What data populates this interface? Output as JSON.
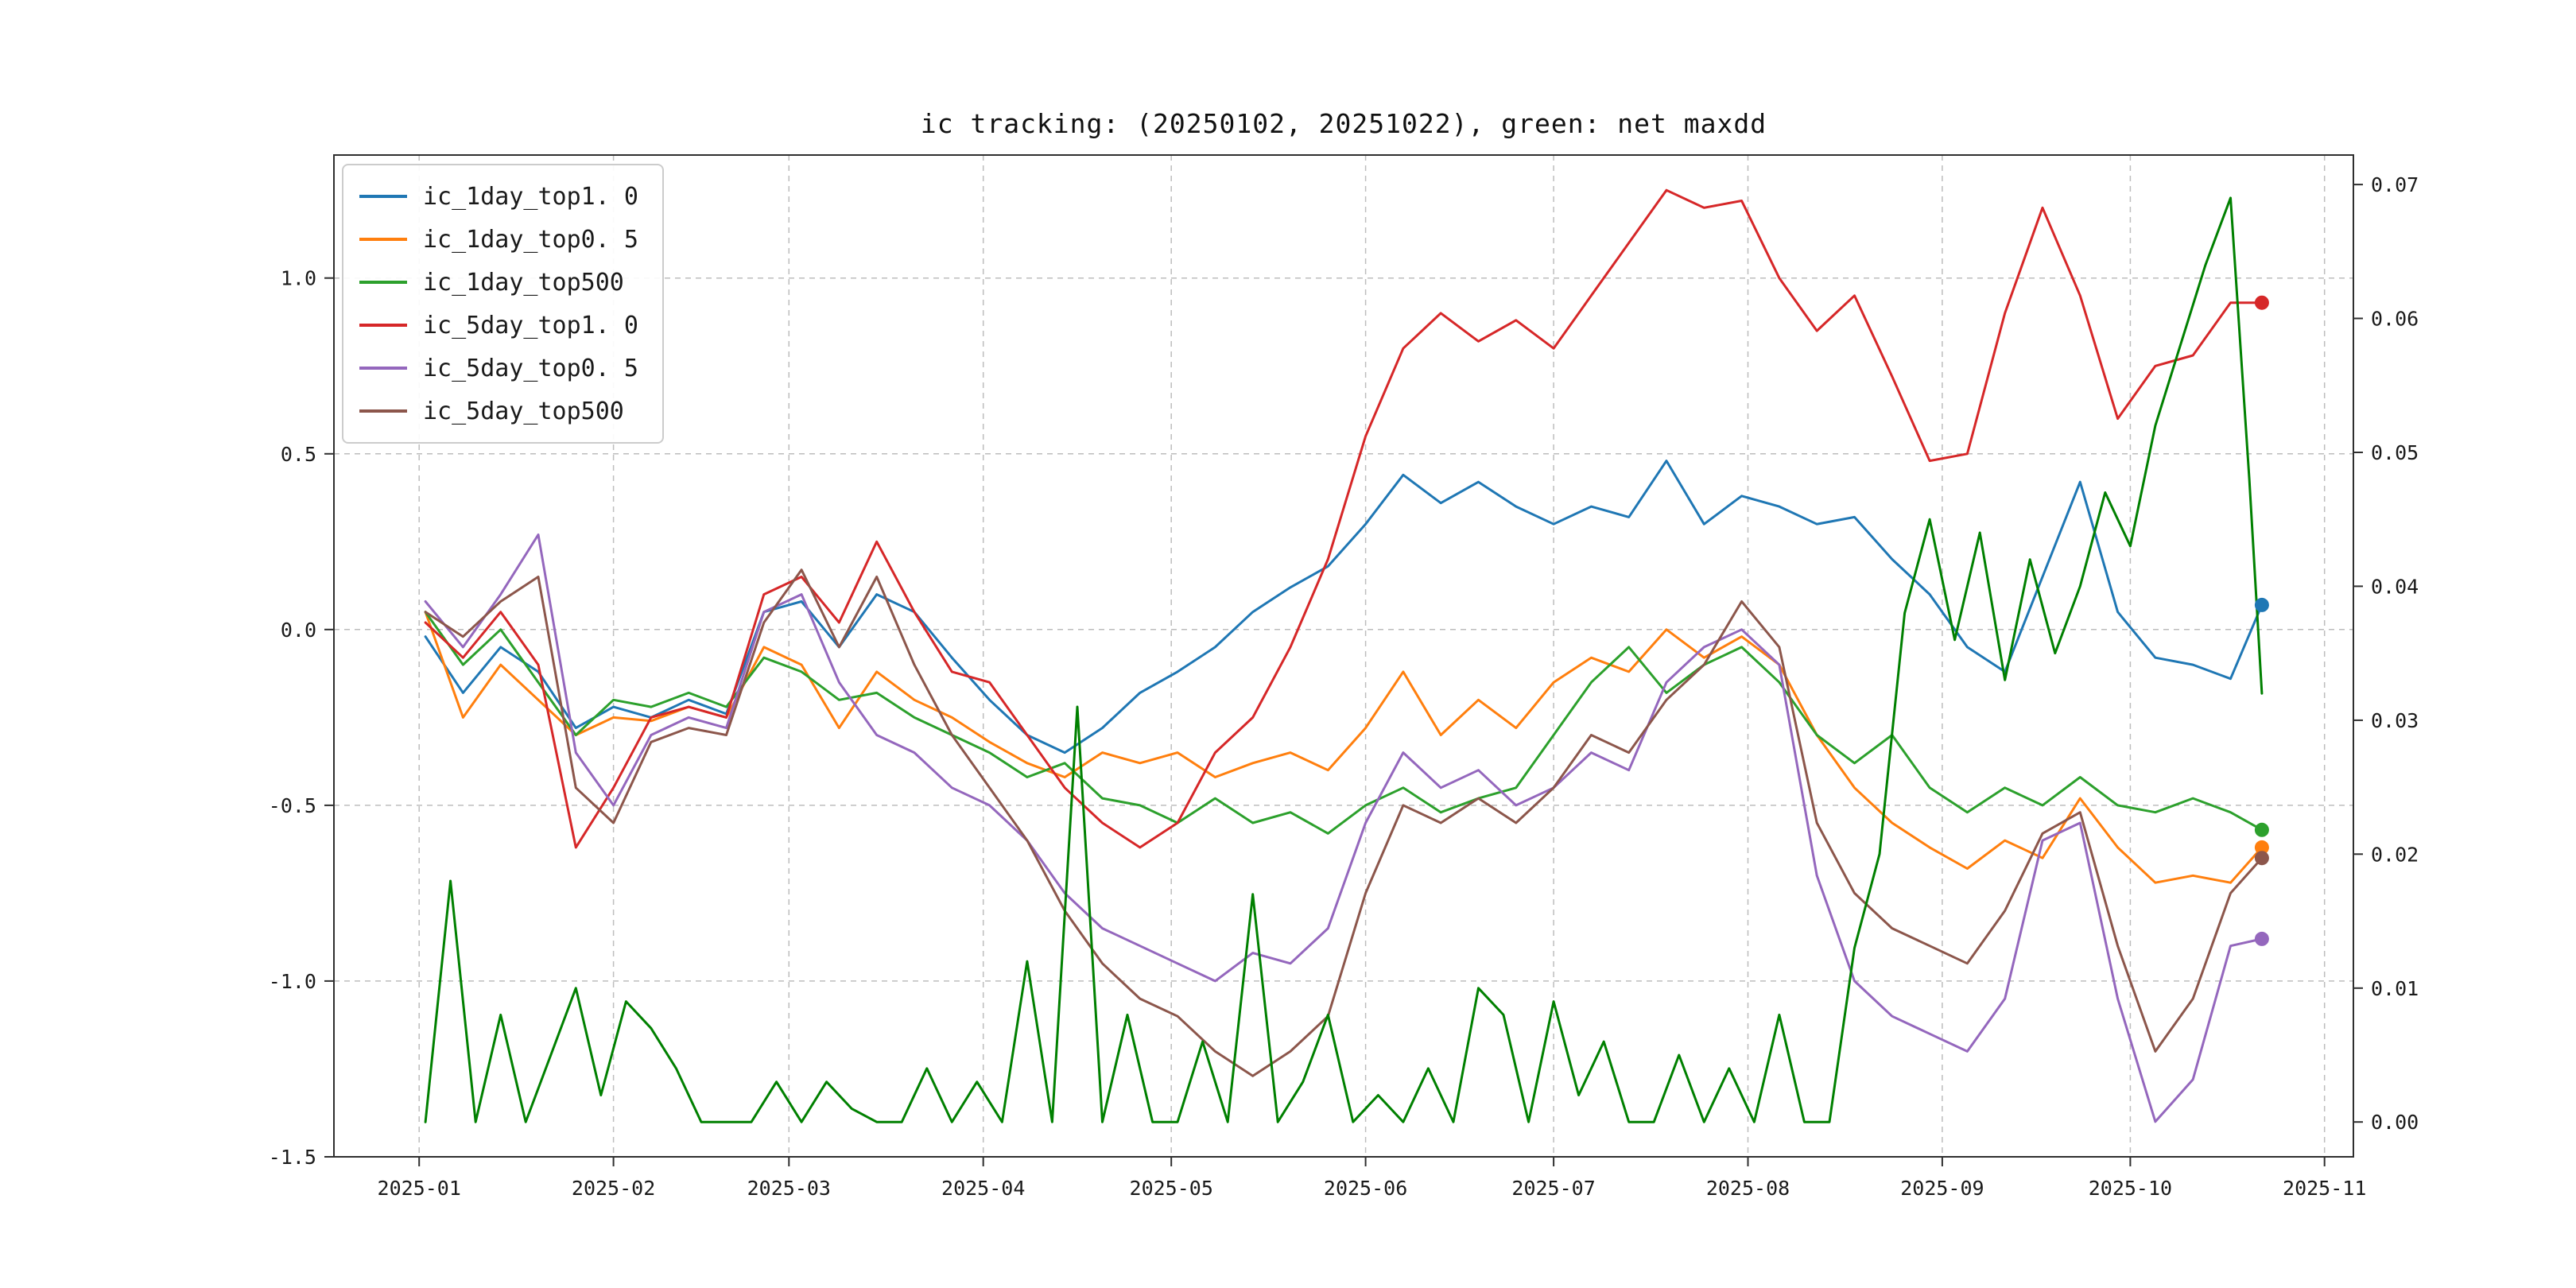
{
  "title": "ic tracking: (20250102, 20251022), green: net maxdd",
  "legend": {
    "items": [
      {
        "label": "ic_1day_top1. 0",
        "color": "#1f77b4"
      },
      {
        "label": "ic_1day_top0. 5",
        "color": "#ff7f0e"
      },
      {
        "label": "ic_1day_top500",
        "color": "#2ca02c"
      },
      {
        "label": "ic_5day_top1. 0",
        "color": "#d62728"
      },
      {
        "label": "ic_5day_top0. 5",
        "color": "#9467bd"
      },
      {
        "label": "ic_5day_top500",
        "color": "#8c564b"
      }
    ]
  },
  "axes": {
    "x_tick_labels": [
      "2025-01",
      "2025-02",
      "2025-03",
      "2025-04",
      "2025-05",
      "2025-06",
      "2025-07",
      "2025-08",
      "2025-09",
      "2025-10",
      "2025-11"
    ],
    "x_tick_days": [
      1,
      32,
      60,
      91,
      121,
      152,
      182,
      213,
      244,
      274,
      305
    ],
    "left_tick_labels": [
      "1.0",
      "0.5",
      "0.0",
      "-0.5",
      "-1.0",
      "-1.5"
    ],
    "left_tick_values": [
      1.0,
      0.5,
      0.0,
      -0.5,
      -1.0,
      -1.5
    ],
    "right_tick_labels": [
      "0.07",
      "0.06",
      "0.05",
      "0.04",
      "0.03",
      "0.02",
      "0.01",
      "0.00"
    ],
    "right_tick_values": [
      0.07,
      0.06,
      0.05,
      0.04,
      0.03,
      0.02,
      0.01,
      0.0
    ]
  },
  "chart_data": {
    "type": "line",
    "title": "ic tracking: (20250102, 20251022), green: net maxdd",
    "x_unit": "day-of-year 2025, data span 2025-01-02 to 2025-10-22",
    "xlim_days": [
      -12.6,
      309.6
    ],
    "left_ylim": [
      -1.5,
      1.35
    ],
    "right_ylim": [
      -0.0026,
      0.0722
    ],
    "grid": true,
    "legend_position": "upper left",
    "shared_x_days": [
      2,
      8,
      14,
      20,
      26,
      32,
      38,
      44,
      50,
      56,
      62,
      68,
      74,
      80,
      86,
      92,
      98,
      104,
      110,
      116,
      122,
      128,
      134,
      140,
      146,
      152,
      158,
      164,
      170,
      176,
      182,
      188,
      194,
      200,
      206,
      212,
      218,
      224,
      230,
      236,
      242,
      248,
      254,
      260,
      266,
      272,
      278,
      284,
      290,
      295
    ],
    "series": [
      {
        "name": "ic_1day_top1.0",
        "color": "#1f77b4",
        "axis": "left",
        "values": [
          -0.02,
          -0.18,
          -0.05,
          -0.12,
          -0.28,
          -0.22,
          -0.25,
          -0.2,
          -0.24,
          0.05,
          0.08,
          -0.05,
          0.1,
          0.05,
          -0.08,
          -0.2,
          -0.3,
          -0.35,
          -0.28,
          -0.18,
          -0.12,
          -0.05,
          0.05,
          0.12,
          0.18,
          0.3,
          0.44,
          0.36,
          0.42,
          0.35,
          0.3,
          0.35,
          0.32,
          0.48,
          0.3,
          0.38,
          0.35,
          0.3,
          0.32,
          0.2,
          0.1,
          -0.05,
          -0.12,
          0.15,
          0.42,
          0.05,
          -0.08,
          -0.1,
          -0.14,
          0.07
        ]
      },
      {
        "name": "ic_1day_top0.5",
        "color": "#ff7f0e",
        "axis": "left",
        "values": [
          0.05,
          -0.25,
          -0.1,
          -0.2,
          -0.3,
          -0.25,
          -0.26,
          -0.22,
          -0.25,
          -0.05,
          -0.1,
          -0.28,
          -0.12,
          -0.2,
          -0.25,
          -0.32,
          -0.38,
          -0.42,
          -0.35,
          -0.38,
          -0.35,
          -0.42,
          -0.38,
          -0.35,
          -0.4,
          -0.28,
          -0.12,
          -0.3,
          -0.2,
          -0.28,
          -0.15,
          -0.08,
          -0.12,
          0.0,
          -0.08,
          -0.02,
          -0.1,
          -0.3,
          -0.45,
          -0.55,
          -0.62,
          -0.68,
          -0.6,
          -0.65,
          -0.48,
          -0.62,
          -0.72,
          -0.7,
          -0.72,
          -0.62
        ]
      },
      {
        "name": "ic_1day_top500",
        "color": "#2ca02c",
        "axis": "left",
        "values": [
          0.05,
          -0.1,
          0.0,
          -0.15,
          -0.3,
          -0.2,
          -0.22,
          -0.18,
          -0.22,
          -0.08,
          -0.12,
          -0.2,
          -0.18,
          -0.25,
          -0.3,
          -0.35,
          -0.42,
          -0.38,
          -0.48,
          -0.5,
          -0.55,
          -0.48,
          -0.55,
          -0.52,
          -0.58,
          -0.5,
          -0.45,
          -0.52,
          -0.48,
          -0.45,
          -0.3,
          -0.15,
          -0.05,
          -0.18,
          -0.1,
          -0.05,
          -0.15,
          -0.3,
          -0.38,
          -0.3,
          -0.45,
          -0.52,
          -0.45,
          -0.5,
          -0.42,
          -0.5,
          -0.52,
          -0.48,
          -0.52,
          -0.57
        ]
      },
      {
        "name": "ic_5day_top1.0",
        "color": "#d62728",
        "axis": "left",
        "values": [
          0.02,
          -0.08,
          0.05,
          -0.1,
          -0.62,
          -0.45,
          -0.25,
          -0.22,
          -0.25,
          0.1,
          0.15,
          0.02,
          0.25,
          0.05,
          -0.12,
          -0.15,
          -0.3,
          -0.45,
          -0.55,
          -0.62,
          -0.55,
          -0.35,
          -0.25,
          -0.05,
          0.2,
          0.55,
          0.8,
          0.9,
          0.82,
          0.88,
          0.8,
          0.95,
          1.1,
          1.25,
          1.2,
          1.22,
          1.0,
          0.85,
          0.95,
          0.72,
          0.48,
          0.5,
          0.9,
          1.2,
          0.95,
          0.6,
          0.75,
          0.78,
          0.93,
          0.93
        ]
      },
      {
        "name": "ic_5day_top0.5",
        "color": "#9467bd",
        "axis": "left",
        "values": [
          0.08,
          -0.05,
          0.1,
          0.27,
          -0.35,
          -0.5,
          -0.3,
          -0.25,
          -0.28,
          0.05,
          0.1,
          -0.15,
          -0.3,
          -0.35,
          -0.45,
          -0.5,
          -0.6,
          -0.75,
          -0.85,
          -0.9,
          -0.95,
          -1.0,
          -0.92,
          -0.95,
          -0.85,
          -0.55,
          -0.35,
          -0.45,
          -0.4,
          -0.5,
          -0.45,
          -0.35,
          -0.4,
          -0.15,
          -0.05,
          0.0,
          -0.1,
          -0.7,
          -1.0,
          -1.1,
          -1.15,
          -1.2,
          -1.05,
          -0.6,
          -0.55,
          -1.05,
          -1.4,
          -1.28,
          -0.9,
          -0.88
        ]
      },
      {
        "name": "ic_5day_top500",
        "color": "#8c564b",
        "axis": "left",
        "values": [
          0.05,
          -0.02,
          0.08,
          0.15,
          -0.45,
          -0.55,
          -0.32,
          -0.28,
          -0.3,
          0.02,
          0.17,
          -0.05,
          0.15,
          -0.1,
          -0.3,
          -0.45,
          -0.6,
          -0.8,
          -0.95,
          -1.05,
          -1.1,
          -1.2,
          -1.27,
          -1.2,
          -1.1,
          -0.75,
          -0.5,
          -0.55,
          -0.48,
          -0.55,
          -0.45,
          -0.3,
          -0.35,
          -0.2,
          -0.1,
          0.08,
          -0.05,
          -0.55,
          -0.75,
          -0.85,
          -0.9,
          -0.95,
          -0.8,
          -0.58,
          -0.52,
          -0.9,
          -1.2,
          -1.05,
          -0.75,
          -0.65
        ]
      },
      {
        "name": "net_maxdd",
        "color": "#008000",
        "axis": "right",
        "x_days": [
          2,
          6,
          10,
          14,
          18,
          22,
          26,
          30,
          34,
          38,
          42,
          46,
          50,
          54,
          58,
          62,
          66,
          70,
          74,
          78,
          82,
          86,
          90,
          94,
          98,
          102,
          106,
          110,
          114,
          118,
          122,
          126,
          130,
          134,
          138,
          142,
          146,
          150,
          154,
          158,
          162,
          166,
          170,
          174,
          178,
          182,
          186,
          190,
          194,
          198,
          202,
          206,
          210,
          214,
          218,
          222,
          226,
          230,
          234,
          238,
          242,
          246,
          250,
          254,
          258,
          262,
          266,
          270,
          274,
          278,
          282,
          286,
          290,
          293,
          295
        ],
        "values": [
          0.0,
          0.018,
          0.0,
          0.008,
          0.0,
          0.005,
          0.01,
          0.002,
          0.009,
          0.007,
          0.004,
          0.0,
          0.0,
          0.0,
          0.003,
          0.0,
          0.003,
          0.001,
          0.0,
          0.0,
          0.004,
          0.0,
          0.003,
          0.0,
          0.012,
          0.0,
          0.031,
          0.0,
          0.008,
          0.0,
          0.0,
          0.006,
          0.0,
          0.017,
          0.0,
          0.003,
          0.008,
          0.0,
          0.002,
          0.0,
          0.004,
          0.0,
          0.01,
          0.008,
          0.0,
          0.009,
          0.002,
          0.006,
          0.0,
          0.0,
          0.005,
          0.0,
          0.004,
          0.0,
          0.008,
          0.0,
          0.0,
          0.013,
          0.02,
          0.038,
          0.045,
          0.036,
          0.044,
          0.033,
          0.042,
          0.035,
          0.04,
          0.047,
          0.043,
          0.052,
          0.058,
          0.064,
          0.069,
          0.048,
          0.032
        ]
      }
    ],
    "end_dots": [
      {
        "series": "ic_1day_top1.0",
        "day": 295,
        "value": 0.07,
        "axis": "left",
        "color": "#1f77b4"
      },
      {
        "series": "ic_1day_top0.5",
        "day": 295,
        "value": -0.62,
        "axis": "left",
        "color": "#ff7f0e"
      },
      {
        "series": "ic_1day_top500",
        "day": 295,
        "value": -0.57,
        "axis": "left",
        "color": "#2ca02c"
      },
      {
        "series": "ic_5day_top1.0",
        "day": 295,
        "value": 0.93,
        "axis": "left",
        "color": "#d62728"
      },
      {
        "series": "ic_5day_top0.5",
        "day": 295,
        "value": -0.88,
        "axis": "left",
        "color": "#9467bd"
      },
      {
        "series": "ic_5day_top500",
        "day": 295,
        "value": -0.65,
        "axis": "left",
        "color": "#8c564b"
      }
    ]
  }
}
